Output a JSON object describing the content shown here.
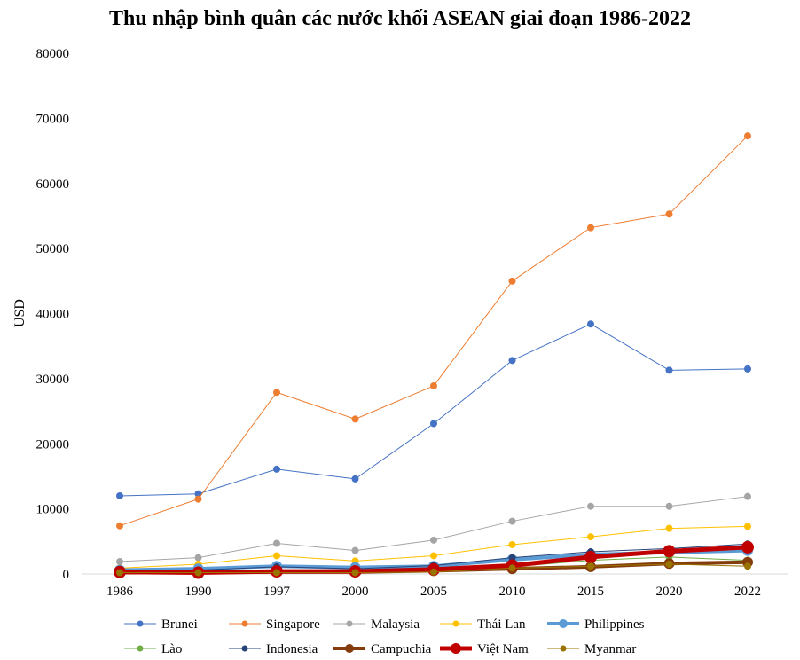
{
  "chart_data": {
    "type": "line",
    "title": "Thu nhập bình quân các nước khối ASEAN giai đoạn 1986-2022",
    "xlabel": "",
    "ylabel": "USD",
    "categories": [
      "1986",
      "1990",
      "1997",
      "2000",
      "2005",
      "2010",
      "2015",
      "2020",
      "2022"
    ],
    "ylim": [
      0,
      80000
    ],
    "yticks": [
      "0",
      "10000",
      "20000",
      "30000",
      "40000",
      "50000",
      "60000",
      "70000",
      "80000"
    ],
    "grid": false,
    "legend_position": "bottom",
    "series": [
      {
        "name": "Brunei",
        "color": "#4472C4",
        "width": 1,
        "marker": 4,
        "values": [
          12000,
          12300,
          16100,
          14600,
          23100,
          32800,
          38400,
          31300,
          31500
        ]
      },
      {
        "name": "Singapore",
        "color": "#ED7D31",
        "width": 1,
        "marker": 4,
        "values": [
          7400,
          11500,
          27900,
          23800,
          28900,
          45000,
          53200,
          55300,
          67300
        ]
      },
      {
        "name": "Malaysia",
        "color": "#A5A5A5",
        "width": 1,
        "marker": 4,
        "values": [
          1900,
          2500,
          4700,
          3600,
          5200,
          8100,
          10400,
          10400,
          11900
        ]
      },
      {
        "name": "Thái Lan",
        "color": "#FFC000",
        "width": 1,
        "marker": 4,
        "values": [
          900,
          1500,
          2800,
          2000,
          2800,
          4500,
          5700,
          7000,
          7300
        ]
      },
      {
        "name": "Philippines",
        "color": "#5B9BD5",
        "width": 4,
        "marker": 6,
        "values": [
          600,
          800,
          1200,
          1000,
          1200,
          2200,
          3000,
          3300,
          3600
        ]
      },
      {
        "name": "Lào",
        "color": "#70AD47",
        "width": 1,
        "marker": 4,
        "values": [
          300,
          200,
          400,
          300,
          500,
          1100,
          2100,
          2600,
          2100
        ]
      },
      {
        "name": "Indonesia",
        "color": "#264478",
        "width": 1,
        "marker": 4,
        "values": [
          500,
          600,
          1100,
          800,
          1300,
          2500,
          3400,
          3900,
          4600
        ]
      },
      {
        "name": "Campuchia",
        "color": "#843C0C",
        "width": 4,
        "marker": 6,
        "values": [
          200,
          200,
          300,
          300,
          500,
          800,
          1100,
          1600,
          1800
        ]
      },
      {
        "name": "Việt Nam",
        "color": "#C00000",
        "width": 5,
        "marker": 7,
        "values": [
          300,
          200,
          400,
          400,
          700,
          1300,
          2600,
          3500,
          4100
        ]
      },
      {
        "name": "Myanmar",
        "color": "#997300",
        "width": 1,
        "marker": 4,
        "values": [
          200,
          200,
          200,
          200,
          300,
          900,
          1200,
          1500,
          1200
        ]
      }
    ]
  }
}
